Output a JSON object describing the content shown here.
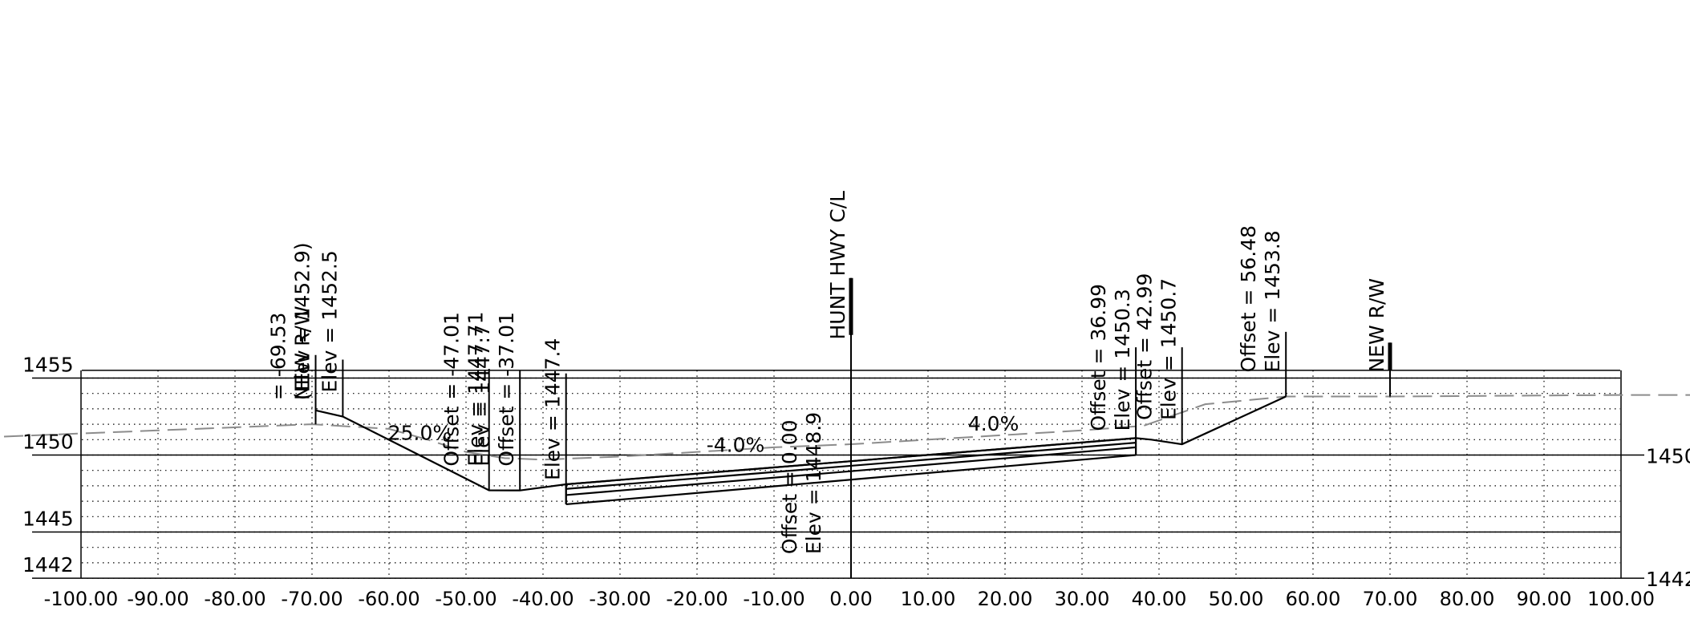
{
  "chart_data": {
    "type": "cross-section",
    "x_axis": {
      "range": [
        -100,
        100
      ],
      "step": 10,
      "tick_labels": [
        "-100.00",
        "-90.00",
        "-80.00",
        "-70.00",
        "-60.00",
        "-50.00",
        "-40.00",
        "-30.00",
        "-20.00",
        "-10.00",
        "0.00",
        "10.00",
        "20.00",
        "30.00",
        "40.00",
        "50.00",
        "60.00",
        "70.00",
        "80.00",
        "90.00",
        "100.00"
      ]
    },
    "y_axis": {
      "range": [
        1442,
        1456
      ],
      "left_labels": [
        {
          "value": 1455,
          "text": "1455"
        },
        {
          "value": 1450,
          "text": "1450"
        },
        {
          "value": 1445,
          "text": "1445"
        },
        {
          "value": 1442,
          "text": "1442"
        }
      ],
      "right_labels": [
        {
          "value": 1450,
          "text": "1450"
        },
        {
          "value": 1442,
          "text": "1442"
        }
      ]
    },
    "existing_ground": [
      [
        -110,
        1451.2
      ],
      [
        -90,
        1451.6
      ],
      [
        -70,
        1452.0
      ],
      [
        -60,
        1451.7
      ],
      [
        -55,
        1451.0
      ],
      [
        -50,
        1450.2
      ],
      [
        -45,
        1449.8
      ],
      [
        -40,
        1449.7
      ],
      [
        -30,
        1449.9
      ],
      [
        -20,
        1450.2
      ],
      [
        -10,
        1450.5
      ],
      [
        0,
        1450.7
      ],
      [
        10,
        1451.0
      ],
      [
        20,
        1451.3
      ],
      [
        30,
        1451.6
      ],
      [
        38,
        1451.9
      ],
      [
        42,
        1452.6
      ],
      [
        46,
        1453.3
      ],
      [
        56.48,
        1453.8
      ],
      [
        70,
        1453.8
      ],
      [
        100,
        1453.9
      ],
      [
        110,
        1453.9
      ]
    ],
    "design_surface": [
      [
        -69.53,
        1452.9
      ],
      [
        -66,
        1452.5
      ],
      [
        -47.01,
        1447.71
      ],
      [
        -43,
        1447.7
      ],
      [
        -37.01,
        1448.1
      ],
      [
        0,
        1449.6
      ],
      [
        36.99,
        1451.1
      ],
      [
        39,
        1451.0
      ],
      [
        42.99,
        1450.7
      ],
      [
        56.48,
        1453.8
      ]
    ],
    "pavement_layers": [
      [
        [
          -37.01,
          1448.1
        ],
        [
          36.99,
          1451.1
        ]
      ],
      [
        [
          -37.01,
          1447.8
        ],
        [
          36.99,
          1450.8
        ]
      ],
      [
        [
          -37.01,
          1447.4
        ],
        [
          36.99,
          1450.5
        ]
      ],
      [
        [
          -37.01,
          1446.8
        ],
        [
          36.99,
          1450.0
        ]
      ]
    ],
    "slope_labels": [
      {
        "text": "25.0%",
        "x": -56,
        "elev": 1451.0
      },
      {
        "text": "-4.0%",
        "x": -15,
        "elev": 1450.2
      },
      {
        "text": "4.0%",
        "x": 18.5,
        "elev": 1451.6
      }
    ],
    "callouts": [
      {
        "x": -69.53,
        "leader_bottom": 1452.0,
        "leader_top": 1455.8,
        "lines": [
          "NEW  R/W"
        ]
      },
      {
        "x": -69.53,
        "leader_bottom": 1452.0,
        "leader_top": 1456.5,
        "lines": [
          "=  -69.53",
          "(Elev  =  1452.9)"
        ]
      },
      {
        "x": -66.0,
        "leader_bottom": 1452.5,
        "leader_top": 1456.2,
        "lines": [
          "Elev  =  1452.5"
        ]
      },
      {
        "x": -47.01,
        "leader_bottom": 1447.7,
        "leader_top": 1455.6,
        "lines": [
          "Offset  =  -47.01",
          "Elev  =  1447.71"
        ]
      },
      {
        "x": -43.0,
        "leader_bottom": 1447.7,
        "leader_top": 1455.5,
        "lines": [
          "Elev  =  1447.7",
          "Offset  =  -37.01"
        ]
      },
      {
        "x": -37.01,
        "leader_bottom": 1446.8,
        "leader_top": 1455.3,
        "lines": [
          "Elev  =  1447.4"
        ]
      },
      {
        "x": 0.0,
        "leader_bottom": 1442.0,
        "leader_top": 1461.5,
        "heavy_from": 1457.8,
        "lines": [
          "Offset  =  0.00",
          "Elev  =  1448.9",
          "HUNT  HWY  C/L"
        ]
      },
      {
        "x": 36.99,
        "leader_bottom": 1450.0,
        "leader_top": 1457.0,
        "lines": [
          "Offset  =  36.99",
          "Elev  =  1450.3"
        ]
      },
      {
        "x": 42.99,
        "leader_bottom": 1450.7,
        "leader_top": 1457.0,
        "lines": [
          "Offset  =  42.99",
          "Elev  =  1450.7"
        ]
      },
      {
        "x": 56.48,
        "leader_bottom": 1453.8,
        "leader_top": 1458.0,
        "lines": [
          "Offset  =  56.48",
          "Elev  =  1453.8"
        ]
      },
      {
        "x": 70.0,
        "leader_bottom": 1453.8,
        "leader_top": 1457.3,
        "heavy_from": 1455.5,
        "lines": [
          "NEW  R/W"
        ]
      }
    ]
  }
}
